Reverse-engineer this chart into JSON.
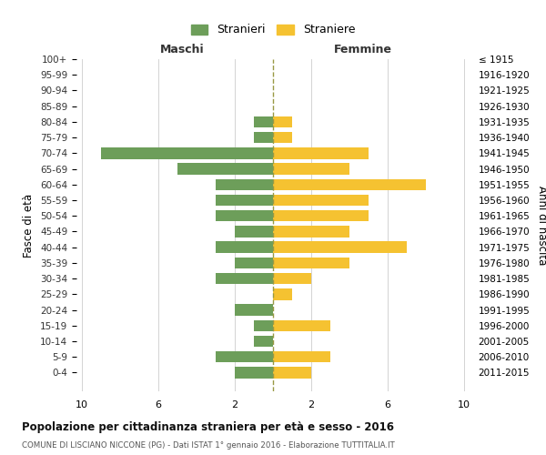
{
  "age_groups": [
    "100+",
    "95-99",
    "90-94",
    "85-89",
    "80-84",
    "75-79",
    "70-74",
    "65-69",
    "60-64",
    "55-59",
    "50-54",
    "45-49",
    "40-44",
    "35-39",
    "30-34",
    "25-29",
    "20-24",
    "15-19",
    "10-14",
    "5-9",
    "0-4"
  ],
  "birth_years": [
    "≤ 1915",
    "1916-1920",
    "1921-1925",
    "1926-1930",
    "1931-1935",
    "1936-1940",
    "1941-1945",
    "1946-1950",
    "1951-1955",
    "1956-1960",
    "1961-1965",
    "1966-1970",
    "1971-1975",
    "1976-1980",
    "1981-1985",
    "1986-1990",
    "1991-1995",
    "1996-2000",
    "2001-2005",
    "2006-2010",
    "2011-2015"
  ],
  "maschi": [
    0,
    0,
    0,
    0,
    1,
    1,
    9,
    5,
    3,
    3,
    3,
    2,
    3,
    2,
    3,
    0,
    2,
    1,
    1,
    3,
    2
  ],
  "femmine": [
    0,
    0,
    0,
    0,
    1,
    1,
    5,
    4,
    8,
    5,
    5,
    4,
    7,
    4,
    2,
    1,
    0,
    3,
    0,
    3,
    2
  ],
  "maschi_color": "#6d9e5a",
  "femmine_color": "#f5c231",
  "title": "Popolazione per cittadinanza straniera per età e sesso - 2016",
  "subtitle": "COMUNE DI LISCIANO NICCONE (PG) - Dati ISTAT 1° gennaio 2016 - Elaborazione TUTTITALIA.IT",
  "header_left": "Maschi",
  "header_right": "Femmine",
  "ylabel_left": "Fasce di età",
  "ylabel_right": "Anni di nascita",
  "legend_stranieri": "Stranieri",
  "legend_straniere": "Straniere",
  "xlim": 10,
  "bg_color": "#ffffff",
  "grid_color": "#cccccc"
}
